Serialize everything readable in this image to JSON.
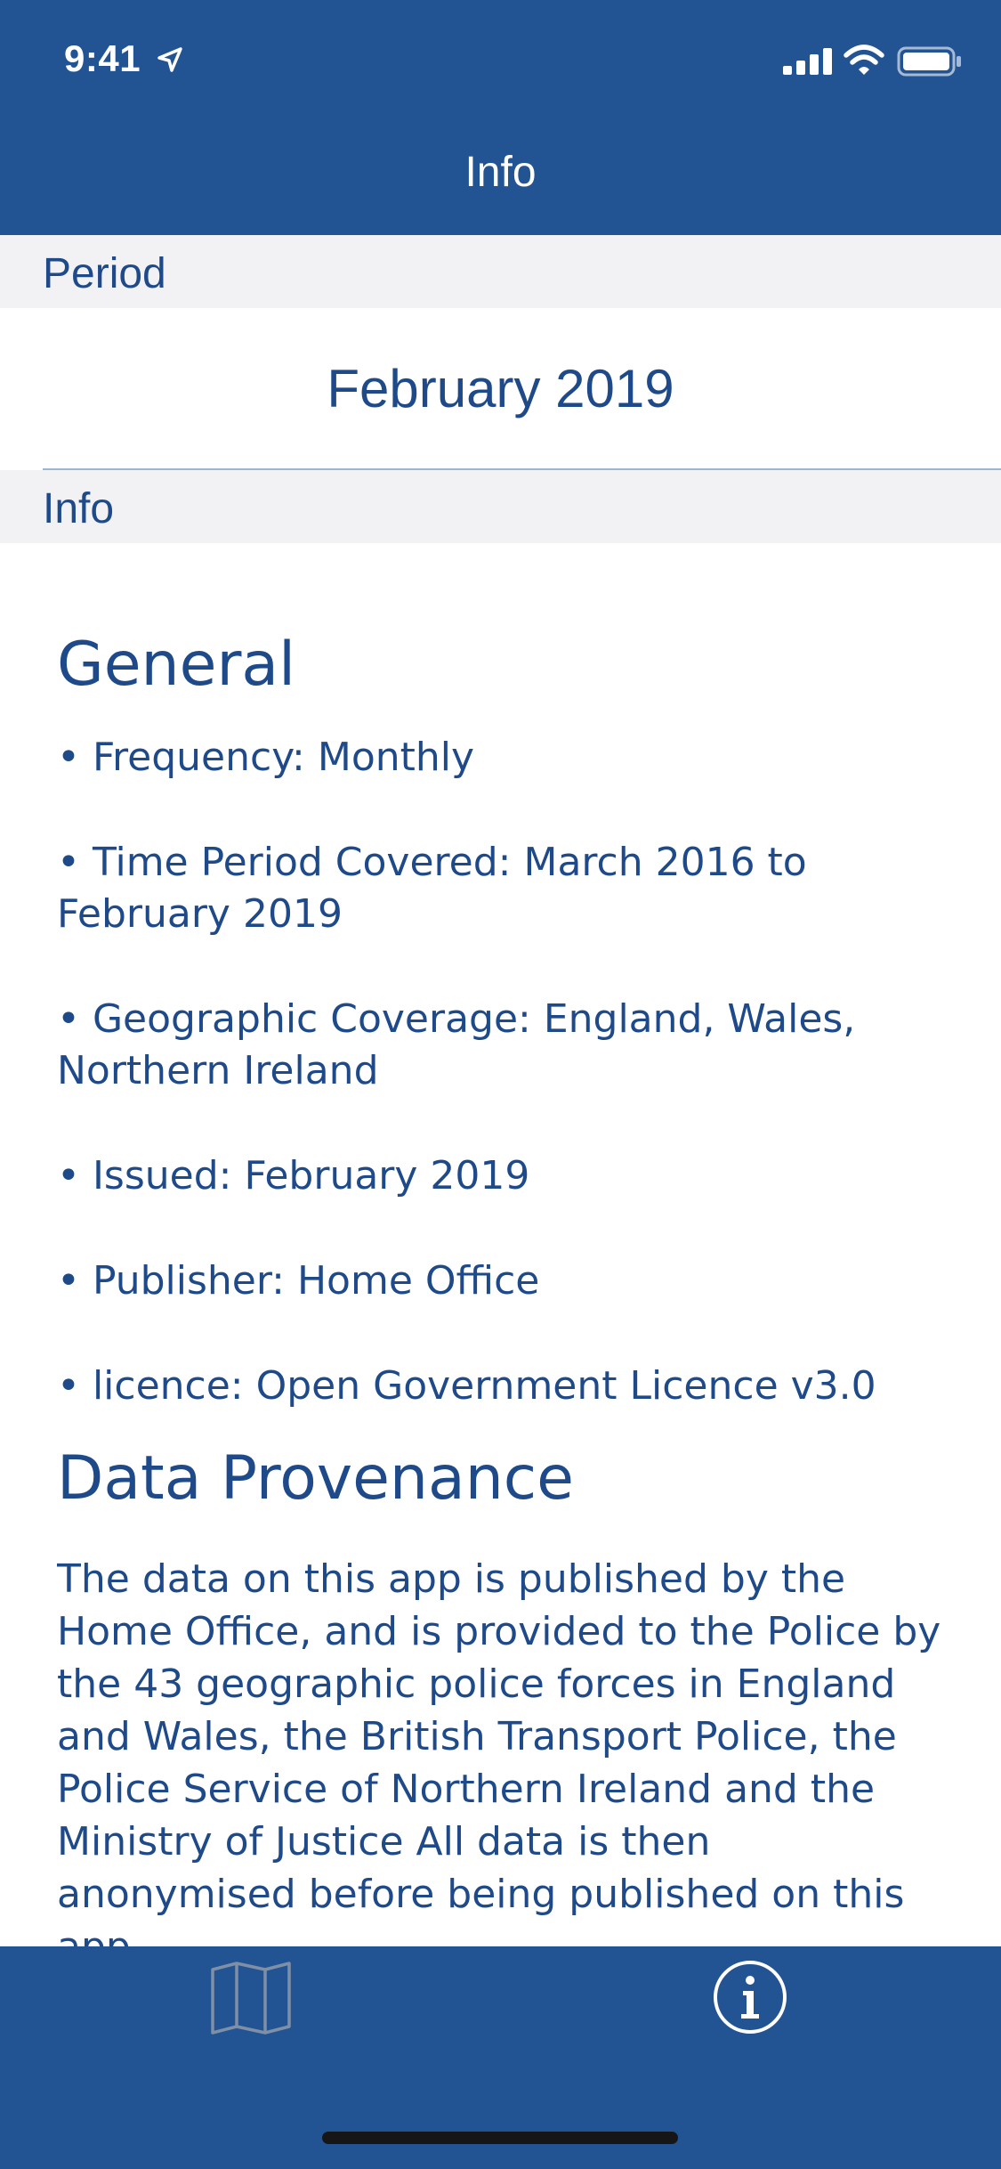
{
  "status_bar": {
    "time": "9:41"
  },
  "nav": {
    "title": "Info"
  },
  "sections": {
    "period_label": "Period",
    "period_value": "February 2019",
    "info_label": "Info"
  },
  "content": {
    "general_heading": "General",
    "bullets": [
      "• Frequency: Monthly",
      "• Time Period Covered: March 2016 to February 2019",
      "• Geographic Coverage: England, Wales, Northern Ireland",
      "• Issued: February 2019",
      "• Publisher: Home Office",
      "• licence: Open Government Licence v3.0"
    ],
    "provenance_heading": "Data Provenance",
    "provenance_text": "The data on this app is published by the Home Office, and is provided to the Police by the 43 geographic police forces in England and Wales, the British Transport Police, the Police Service of Northern Ireland and the Ministry of Justice All data is then anonymised before being published on this app."
  },
  "tabbar": {
    "tabs": [
      {
        "icon": "map-icon",
        "selected": false
      },
      {
        "icon": "info-icon",
        "selected": true
      }
    ]
  },
  "colors": {
    "brand_blue": "#225393",
    "text_blue": "#1f4a8a",
    "section_bg": "#f2f2f4",
    "inactive_tab": "#7f8fa6"
  }
}
